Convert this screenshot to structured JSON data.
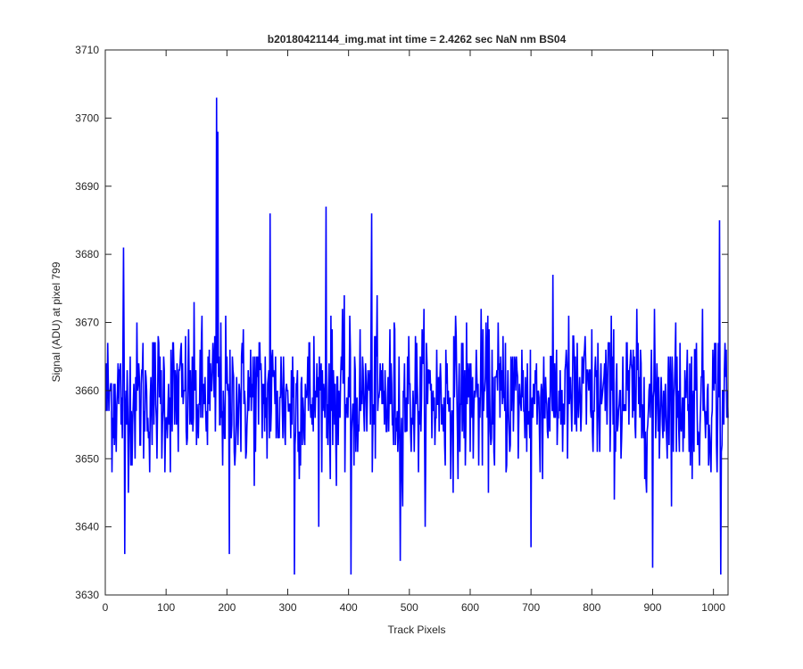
{
  "chart_data": {
    "type": "line",
    "title": "b20180421144_img.mat int time = 2.4262 sec  NaN nm BS04",
    "xlabel": "Track Pixels",
    "ylabel": "Signal (ADU) at pixel 799",
    "xlim": [
      0,
      1024
    ],
    "ylim": [
      3630,
      3710
    ],
    "xticks": [
      0,
      100,
      200,
      300,
      400,
      500,
      600,
      700,
      800,
      900,
      1000
    ],
    "yticks": [
      3630,
      3640,
      3650,
      3660,
      3670,
      3680,
      3690,
      3700,
      3710
    ],
    "grid": false,
    "series_color": "#0000ff",
    "series": [
      {
        "n_points": 1024,
        "x_start": 1,
        "x_step": 1,
        "mean": 3659,
        "noise_std": 5.5,
        "range": [
          3633,
          3703
        ],
        "notable_points": [
          {
            "x": 30,
            "y": 3681
          },
          {
            "x": 32,
            "y": 3636
          },
          {
            "x": 183,
            "y": 3703
          },
          {
            "x": 185,
            "y": 3698
          },
          {
            "x": 204,
            "y": 3636
          },
          {
            "x": 271,
            "y": 3686
          },
          {
            "x": 311,
            "y": 3633
          },
          {
            "x": 363,
            "y": 3687
          },
          {
            "x": 404,
            "y": 3633
          },
          {
            "x": 438,
            "y": 3686
          },
          {
            "x": 485,
            "y": 3635
          },
          {
            "x": 700,
            "y": 3637
          },
          {
            "x": 900,
            "y": 3634
          },
          {
            "x": 1010,
            "y": 3685
          },
          {
            "x": 1012,
            "y": 3633
          }
        ]
      }
    ]
  }
}
